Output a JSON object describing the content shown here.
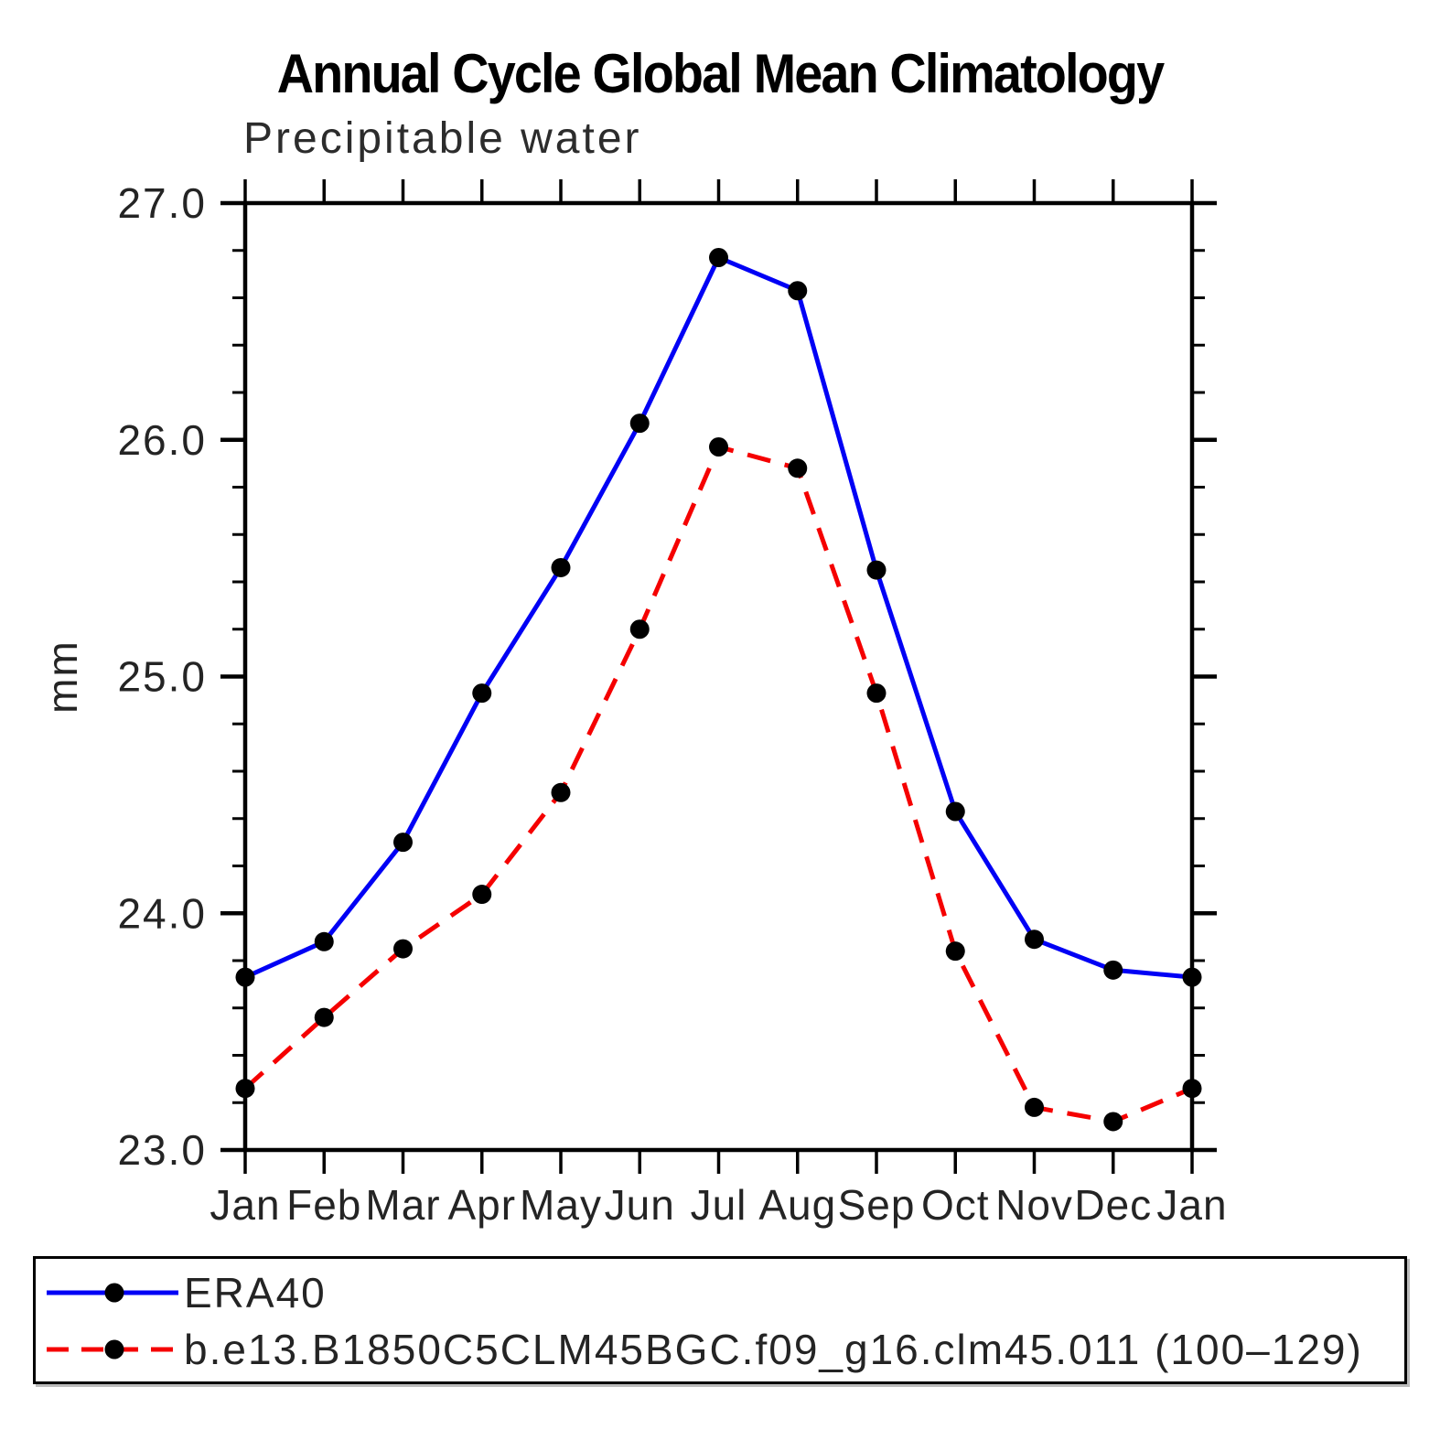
{
  "chart_data": {
    "type": "line",
    "title": "Annual Cycle Global Mean Climatology",
    "subtitle": "Precipitable water",
    "ylabel": "mm",
    "xlabel": "",
    "categories": [
      "Jan",
      "Feb",
      "Mar",
      "Apr",
      "May",
      "Jun",
      "Jul",
      "Aug",
      "Sep",
      "Oct",
      "Nov",
      "Dec",
      "Jan"
    ],
    "ylim": [
      23.0,
      27.0
    ],
    "ytick_major": [
      23.0,
      24.0,
      25.0,
      26.0,
      27.0
    ],
    "ytick_labels": [
      "23.0",
      "24.0",
      "25.0",
      "26.0",
      "27.0"
    ],
    "ytick_minor_step": 0.2,
    "grid": false,
    "legend_position": "bottom-box",
    "marker": "filled-circle",
    "marker_color": "#000000",
    "axis_color": "#000000",
    "series": [
      {
        "name": "ERA40",
        "color": "#0000f5",
        "style": "solid",
        "values": [
          23.73,
          23.88,
          24.3,
          24.93,
          25.46,
          26.07,
          26.77,
          26.63,
          25.45,
          24.43,
          23.89,
          23.76,
          23.73
        ]
      },
      {
        "name": "b.e13.B1850C5CLM45BGC.f09_g16.clm45.011 (100–129)",
        "color": "#f50000",
        "style": "dashed",
        "values": [
          23.26,
          23.56,
          23.85,
          24.08,
          24.51,
          25.2,
          25.97,
          25.88,
          24.93,
          23.84,
          23.18,
          23.12,
          23.26
        ]
      }
    ]
  }
}
